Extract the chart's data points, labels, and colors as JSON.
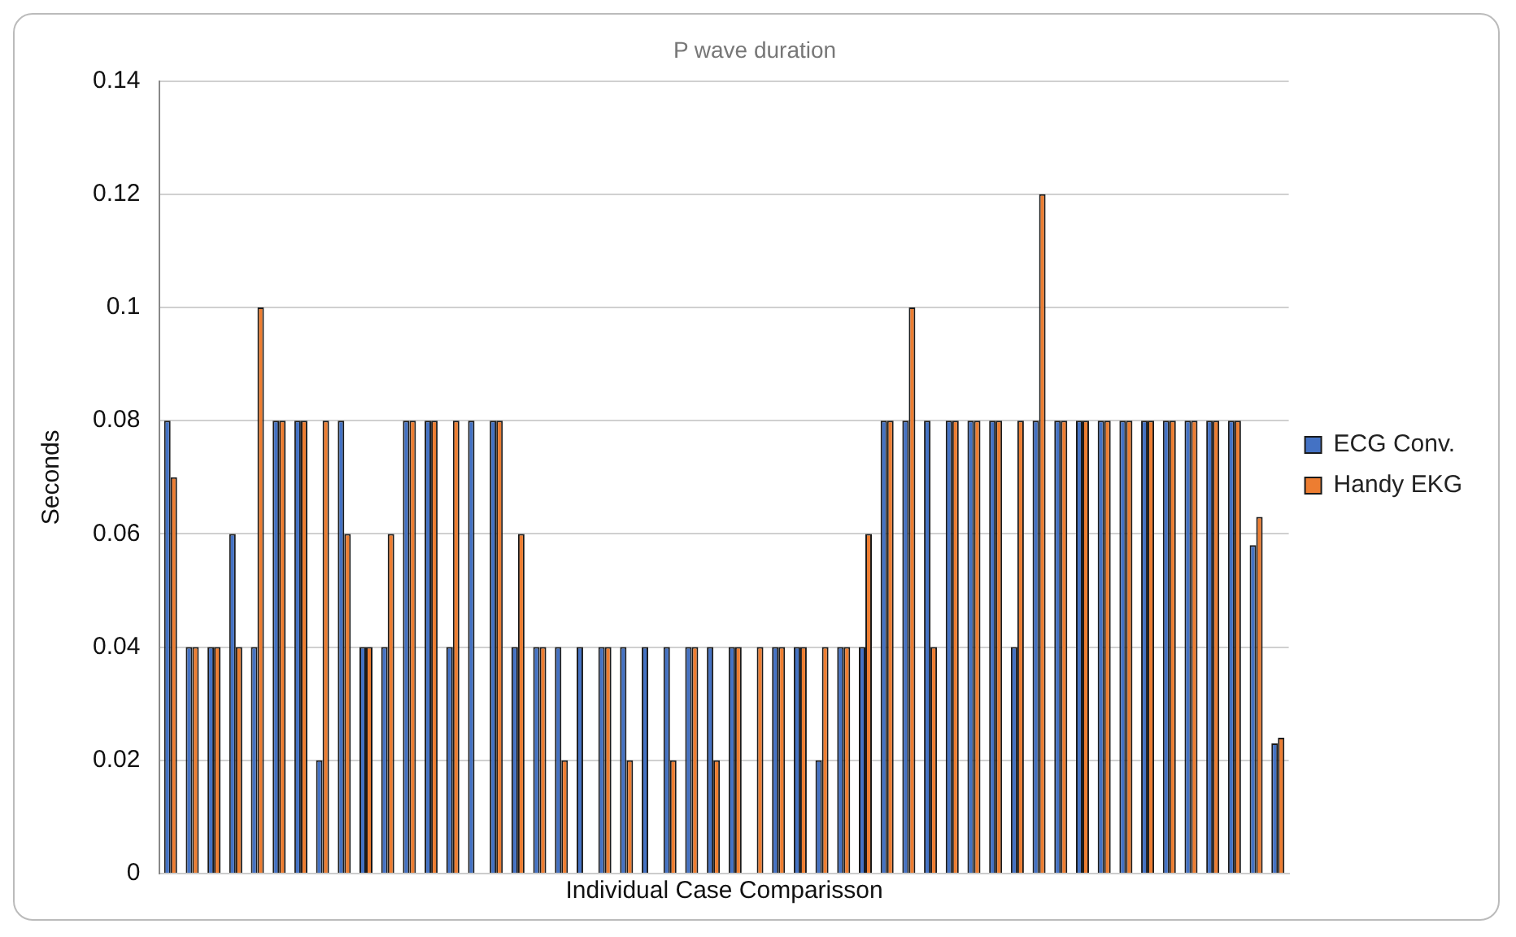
{
  "chart_data": {
    "type": "bar",
    "title": "P wave duration",
    "xlabel": "Individual Case Comparisson",
    "ylabel": "Seconds",
    "categories": [
      null,
      null,
      null,
      null,
      null,
      null,
      null,
      null,
      null,
      null,
      null,
      null,
      null,
      null,
      null,
      null,
      null,
      null,
      null,
      null,
      null,
      null,
      null,
      null,
      null,
      null,
      null,
      null,
      null,
      null,
      null,
      null,
      null,
      null,
      null,
      null,
      null,
      null,
      null,
      null,
      null,
      null,
      null,
      null,
      null,
      null,
      null,
      null,
      null,
      null,
      null,
      null
    ],
    "series": [
      {
        "name": "ECG Conv.",
        "color": "#4472c4",
        "values": [
          0.08,
          0.04,
          0.04,
          0.06,
          0.04,
          0.08,
          0.08,
          0.02,
          0.08,
          0.04,
          0.04,
          0.08,
          0.08,
          0.04,
          0.08,
          0.08,
          0.04,
          0.04,
          0.04,
          0.04,
          0.04,
          0.04,
          0.04,
          0.04,
          0.04,
          0.04,
          0.04,
          0,
          0.04,
          0.04,
          0.02,
          0.04,
          0.04,
          0.08,
          0.08,
          0.08,
          0.08,
          0.08,
          0.08,
          0.04,
          0.08,
          0.08,
          0.08,
          0.08,
          0.08,
          0.08,
          0.08,
          0.08,
          0.08,
          0.08,
          0.058,
          0.023
        ]
      },
      {
        "name": "Handy EKG",
        "color": "#ed7d31",
        "values": [
          0.07,
          0.04,
          0.04,
          0.04,
          0.1,
          0.08,
          0.08,
          0.08,
          0.06,
          0.04,
          0.06,
          0.08,
          0.08,
          0.08,
          0,
          0.08,
          0.06,
          0.04,
          0.02,
          0,
          0.04,
          0.02,
          0,
          0.02,
          0.04,
          0.02,
          0.04,
          0.04,
          0.04,
          0.04,
          0.04,
          0.04,
          0.06,
          0.08,
          0.1,
          0.04,
          0.08,
          0.08,
          0.08,
          0.08,
          0.12,
          0.08,
          0.08,
          0.08,
          0.08,
          0.08,
          0.08,
          0.08,
          0.08,
          0.08,
          0.063,
          0.024
        ]
      }
    ],
    "ylim": [
      0,
      0.14
    ],
    "yticks": [
      0,
      0.02,
      0.04,
      0.06,
      0.08,
      0.1,
      0.12,
      0.14
    ],
    "grid": "y",
    "legend": "right",
    "tick_labels": "y"
  }
}
